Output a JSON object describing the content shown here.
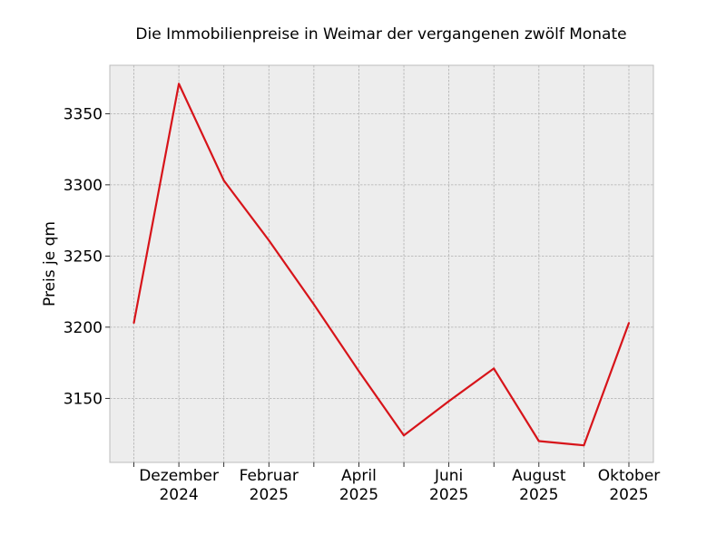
{
  "chart_data": {
    "type": "line",
    "title": "Die Immobilienpreise in Weimar der vergangenen zwölf Monate",
    "xlabel": "",
    "ylabel": "Preis je qm",
    "x": [
      "2024-11",
      "2024-12",
      "2025-01",
      "2025-02",
      "2025-03",
      "2025-04",
      "2025-05",
      "2025-06",
      "2025-07",
      "2025-08",
      "2025-09",
      "2025-10"
    ],
    "x_tick_labels": [
      {
        "x": "2024-12",
        "line1": "Dezember",
        "line2": "2024"
      },
      {
        "x": "2025-02",
        "line1": "Februar",
        "line2": "2025"
      },
      {
        "x": "2025-04",
        "line1": "April",
        "line2": "2025"
      },
      {
        "x": "2025-06",
        "line1": "Juni",
        "line2": "2025"
      },
      {
        "x": "2025-08",
        "line1": "August",
        "line2": "2025"
      },
      {
        "x": "2025-10",
        "line1": "Oktober",
        "line2": "2025"
      }
    ],
    "series": [
      {
        "values": [
          3203,
          3371,
          3303,
          3261,
          3216,
          3169,
          3124,
          3148,
          3171,
          3120,
          3117,
          3203
        ]
      }
    ],
    "ylim": [
      3105,
      3384
    ],
    "y_ticks": [
      3150,
      3200,
      3250,
      3300,
      3350
    ],
    "grid": true,
    "line_color": "#d7141a",
    "plot_background": "#ededed"
  }
}
